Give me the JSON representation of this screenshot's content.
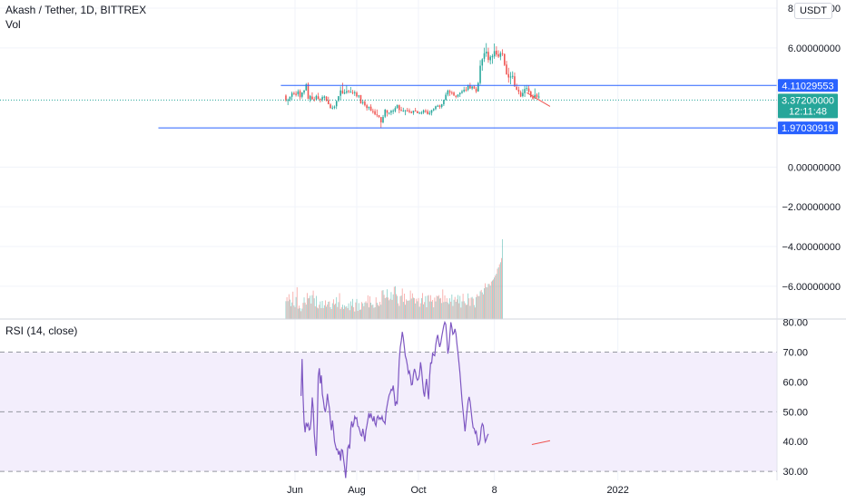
{
  "header": {
    "symbol_line": "Akash / Tether, 1D, BITTREX",
    "vol_label": "Vol"
  },
  "currency_badge": "USDT",
  "price_axis": {
    "ticks": [
      "8.00000000",
      "6.00000000",
      "0.00000000",
      "−2.00000000",
      "−4.00000000",
      "−6.00000000"
    ],
    "tick_values": [
      8,
      6,
      0,
      -2,
      -4,
      -6
    ],
    "range": [
      -7.65,
      8.0
    ]
  },
  "levels": {
    "resistance": {
      "label": "4.11029553",
      "value": 4.11029553,
      "color": "#2962ff"
    },
    "support": {
      "label": "1.97030919",
      "value": 1.97030919,
      "color": "#2962ff"
    },
    "last_price": {
      "label": "3.37200000",
      "countdown": "12:11:48",
      "value": 3.372,
      "color": "#26a69a"
    }
  },
  "rsi_panel": {
    "label": "RSI (14, close)",
    "ticks": [
      "80.00",
      "70.00",
      "60.00",
      "50.00",
      "40.00",
      "30.00"
    ],
    "tick_values": [
      80,
      70,
      60,
      50,
      40,
      30
    ],
    "range": [
      27,
      80.5
    ],
    "band": [
      30,
      70
    ],
    "line_color": "#7e57c2",
    "band_color": "#f3eefc"
  },
  "time_axis": {
    "labels": [
      "Jun",
      "Aug",
      "Oct",
      "8",
      "2022"
    ],
    "label_index": [
      0,
      61,
      122,
      197,
      319
    ]
  },
  "chart_data": [
    {
      "type": "candlestick",
      "name": "price",
      "up_color": "#26a69a",
      "down_color": "#ef5350",
      "x_start_index": -9,
      "ohlc": [
        [
          3.6,
          3.66,
          3.29,
          3.36
        ],
        [
          3.34,
          3.45,
          3.12,
          3.38
        ],
        [
          3.41,
          3.54,
          3.3,
          3.55
        ],
        [
          3.54,
          3.8,
          3.38,
          3.72
        ],
        [
          3.72,
          3.8,
          3.63,
          3.69
        ],
        [
          3.69,
          3.82,
          3.55,
          3.63
        ],
        [
          3.66,
          3.91,
          3.55,
          3.81
        ],
        [
          3.83,
          3.91,
          3.41,
          3.52
        ],
        [
          3.54,
          3.76,
          3.45,
          3.76
        ],
        [
          3.75,
          3.88,
          3.65,
          3.86
        ],
        [
          3.86,
          4.23,
          3.84,
          4.16
        ],
        [
          4.18,
          4.26,
          3.43,
          3.43
        ],
        [
          3.41,
          3.63,
          3.27,
          3.58
        ],
        [
          3.55,
          3.76,
          3.39,
          3.41
        ],
        [
          3.41,
          3.54,
          3.3,
          3.39
        ],
        [
          3.41,
          3.64,
          3.35,
          3.58
        ],
        [
          3.56,
          3.74,
          3.41,
          3.42
        ],
        [
          3.43,
          3.46,
          3.25,
          3.4
        ],
        [
          3.4,
          3.61,
          3.29,
          3.52
        ],
        [
          3.49,
          3.61,
          3.39,
          3.55
        ],
        [
          3.55,
          3.57,
          3.3,
          3.35
        ],
        [
          3.37,
          3.54,
          3.18,
          3.16
        ],
        [
          3.15,
          3.21,
          2.93,
          2.98
        ],
        [
          2.97,
          3.1,
          2.9,
          2.99
        ],
        [
          2.99,
          3.1,
          2.91,
          3.04
        ],
        [
          3.06,
          3.37,
          2.92,
          3.32
        ],
        [
          3.34,
          3.58,
          3.28,
          3.57
        ],
        [
          3.59,
          4.06,
          3.38,
          3.86
        ],
        [
          3.85,
          4.24,
          3.69,
          3.69
        ],
        [
          3.71,
          3.92,
          3.66,
          3.75
        ],
        [
          3.75,
          4.11,
          3.68,
          3.82
        ],
        [
          3.84,
          3.89,
          3.71,
          3.8
        ],
        [
          3.78,
          4.03,
          3.74,
          3.79
        ],
        [
          3.77,
          3.89,
          3.66,
          3.74
        ],
        [
          3.73,
          3.86,
          3.58,
          3.76
        ],
        [
          3.75,
          3.82,
          3.5,
          3.56
        ],
        [
          3.57,
          3.63,
          3.47,
          3.6
        ],
        [
          3.62,
          3.63,
          3.2,
          3.2
        ],
        [
          3.22,
          3.38,
          3.14,
          3.27
        ],
        [
          3.29,
          3.38,
          3.05,
          3.11
        ],
        [
          3.11,
          3.18,
          2.84,
          2.97
        ],
        [
          2.97,
          3.04,
          2.87,
          3.04
        ],
        [
          3.04,
          3.16,
          2.82,
          2.83
        ],
        [
          2.82,
          2.94,
          2.69,
          2.8
        ],
        [
          2.81,
          2.92,
          2.61,
          2.65
        ],
        [
          2.65,
          2.9,
          2.51,
          2.61
        ],
        [
          2.61,
          2.62,
          2.47,
          2.52
        ],
        [
          2.52,
          2.52,
          1.97,
          2.25
        ],
        [
          2.25,
          2.62,
          2.2,
          2.52
        ],
        [
          2.54,
          2.93,
          2.47,
          2.89
        ],
        [
          2.87,
          2.87,
          2.55,
          2.73
        ],
        [
          2.72,
          2.75,
          2.64,
          2.74
        ],
        [
          2.74,
          2.88,
          2.61,
          2.83
        ],
        [
          2.84,
          2.92,
          2.67,
          2.84
        ],
        [
          2.82,
          3.06,
          2.75,
          2.97
        ],
        [
          2.97,
          3.15,
          2.94,
          3.12
        ],
        [
          3.11,
          3.15,
          2.71,
          2.87
        ],
        [
          2.88,
          3.03,
          2.81,
          2.83
        ],
        [
          2.82,
          2.99,
          2.78,
          2.84
        ],
        [
          2.86,
          2.88,
          2.61,
          2.86
        ],
        [
          2.86,
          2.98,
          2.78,
          2.84
        ],
        [
          2.85,
          2.95,
          2.71,
          2.78
        ],
        [
          2.78,
          2.83,
          2.7,
          2.72
        ],
        [
          2.73,
          2.84,
          2.63,
          2.84
        ],
        [
          2.85,
          2.98,
          2.79,
          2.82
        ],
        [
          2.81,
          2.84,
          2.71,
          2.71
        ],
        [
          2.71,
          2.79,
          2.67,
          2.73
        ],
        [
          2.72,
          2.82,
          2.65,
          2.74
        ],
        [
          2.74,
          2.9,
          2.67,
          2.85
        ],
        [
          2.84,
          2.92,
          2.72,
          2.82
        ],
        [
          2.81,
          2.9,
          2.64,
          2.67
        ],
        [
          2.67,
          2.84,
          2.61,
          2.73
        ],
        [
          2.73,
          2.88,
          2.6,
          2.87
        ],
        [
          2.86,
          2.97,
          2.81,
          2.92
        ],
        [
          2.92,
          3.09,
          2.86,
          3.06
        ],
        [
          3.05,
          3.14,
          3.02,
          3.09
        ],
        [
          3.1,
          3.14,
          2.93,
          3.03
        ],
        [
          3.03,
          3.18,
          2.95,
          3.16
        ],
        [
          3.16,
          3.4,
          3.07,
          3.38
        ],
        [
          3.38,
          3.75,
          3.35,
          3.64
        ],
        [
          3.65,
          3.9,
          3.56,
          3.85
        ],
        [
          3.83,
          3.9,
          3.58,
          3.75
        ],
        [
          3.75,
          3.84,
          3.64,
          3.73
        ],
        [
          3.75,
          3.81,
          3.58,
          3.6
        ],
        [
          3.58,
          3.63,
          3.46,
          3.55
        ],
        [
          3.55,
          3.66,
          3.5,
          3.65
        ],
        [
          3.66,
          3.77,
          3.53,
          3.73
        ],
        [
          3.74,
          3.89,
          3.68,
          3.81
        ],
        [
          3.81,
          4.04,
          3.75,
          3.89
        ],
        [
          3.9,
          4.03,
          3.79,
          3.88
        ],
        [
          3.89,
          4.15,
          3.82,
          4.13
        ],
        [
          4.12,
          4.24,
          3.98,
          3.95
        ],
        [
          3.96,
          4.08,
          3.88,
          4.05
        ],
        [
          4.06,
          4.12,
          3.93,
          3.95
        ],
        [
          3.95,
          4.04,
          3.72,
          3.8
        ],
        [
          3.81,
          4.29,
          3.79,
          4.23
        ],
        [
          4.23,
          5.38,
          4.15,
          5.1
        ],
        [
          5.11,
          5.48,
          4.85,
          5.43
        ],
        [
          5.45,
          6.01,
          5.29,
          5.73
        ],
        [
          5.72,
          6.24,
          5.55,
          5.81
        ],
        [
          5.8,
          6.01,
          5.25,
          5.39
        ],
        [
          5.38,
          5.63,
          5.17,
          5.55
        ],
        [
          5.53,
          5.69,
          5.2,
          5.59
        ],
        [
          5.57,
          6.22,
          5.45,
          5.84
        ],
        [
          5.86,
          6.08,
          5.55,
          5.66
        ],
        [
          5.68,
          5.88,
          5.49,
          5.56
        ],
        [
          5.55,
          5.83,
          5.38,
          5.73
        ],
        [
          5.73,
          5.93,
          5.59,
          5.71
        ],
        [
          5.69,
          5.72,
          5.08,
          5.14
        ],
        [
          5.16,
          5.35,
          4.65,
          4.66
        ],
        [
          4.68,
          5.0,
          4.25,
          4.51
        ],
        [
          4.51,
          4.79,
          4.17,
          4.56
        ],
        [
          4.59,
          4.82,
          4.44,
          4.59
        ],
        [
          4.57,
          4.76,
          4.04,
          4.05
        ],
        [
          4.04,
          4.2,
          3.87,
          3.89
        ],
        [
          3.89,
          4.05,
          3.66,
          3.79
        ],
        [
          3.77,
          3.86,
          3.52,
          3.55
        ],
        [
          3.57,
          3.92,
          3.51,
          3.73
        ],
        [
          3.72,
          4.11,
          3.53,
          3.93
        ],
        [
          3.94,
          4.13,
          3.82,
          3.98
        ],
        [
          3.96,
          4.1,
          3.73,
          3.78
        ],
        [
          3.8,
          3.85,
          3.5,
          3.53
        ],
        [
          3.54,
          3.66,
          3.38,
          3.45
        ],
        [
          3.45,
          3.96,
          3.44,
          3.63
        ],
        [
          3.65,
          3.72,
          3.48,
          3.52
        ],
        [
          3.51,
          3.76,
          3.44,
          3.55
        ]
      ]
    },
    {
      "type": "bar",
      "name": "Vol",
      "colors": [
        "#26a69a",
        "#ef5350"
      ],
      "x_start_index": -9,
      "values": [
        0.224,
        0.274,
        0.224,
        0.311,
        0.243,
        0.161,
        0.208,
        0.343,
        0.17,
        0.15,
        0.275,
        0.398,
        0.13,
        0.168,
        0.135,
        0.098,
        0.131,
        0.203,
        0.271,
        0.206,
        0.181,
        0.326,
        0.259,
        0.264,
        0.293,
        0.194,
        0.299,
        0.356,
        0.26,
        0.159,
        0.29,
        0.144,
        0.134,
        0.179,
        0.22,
        0.137,
        0.227,
        0.138,
        0.173,
        0.234,
        0.155,
        0.182,
        0.216,
        0.221,
        0.149,
        0.125,
        0.198,
        0.247,
        0.179,
        0.193,
        0.274,
        0.15,
        0.212,
        0.324,
        0.127,
        0.149,
        0.18,
        0.126,
        0.171,
        0.152,
        0.159,
        0.137,
        0.197,
        0.111,
        0.221,
        0.165,
        0.252,
        0.148,
        0.095,
        0.208,
        0.251,
        0.102,
        0.2,
        0.115,
        0.12,
        0.213,
        0.197,
        0.161,
        0.207,
        0.223,
        0.201,
        0.297,
        0.146,
        0.285,
        0.205,
        0.174,
        0.181,
        0.14,
        0.148,
        0.272,
        0.204,
        0.178,
        0.163,
        0.216,
        0.179,
        0.356,
        0.363,
        0.303,
        0.262,
        0.271,
        0.373,
        0.269,
        0.235,
        0.253,
        0.338,
        0.24,
        0.309,
        0.403,
        0.411,
        0.312,
        0.29,
        0.197,
        0.165,
        0.286,
        0.294,
        0.382,
        0.215,
        0.318,
        0.179,
        0.247,
        0.231,
        0.229,
        0.234,
        0.357,
        0.256,
        0.322,
        0.267,
        0.261,
        0.195,
        0.254,
        0.223,
        0.263,
        0.154,
        0.198,
        0.262,
        0.326,
        0.185,
        0.213,
        0.287,
        0.148,
        0.293,
        0.301,
        0.22,
        0.299,
        0.219,
        0.239,
        0.147,
        0.269,
        0.221,
        0.293,
        0.284,
        0.299,
        0.256,
        0.264,
        0.201,
        0.371,
        0.212,
        0.296,
        0.216,
        0.261,
        0.208,
        0.188,
        0.26,
        0.217,
        0.307,
        0.164,
        0.241,
        0.277,
        0.216,
        0.247,
        0.301,
        0.198,
        0.29,
        0.144,
        0.221,
        0.317,
        0.223,
        0.199,
        0.177,
        0.18,
        0.321,
        0.26,
        0.165,
        0.268,
        0.277,
        0.255,
        0.176,
        0.145,
        0.275,
        0.311,
        0.287,
        0.288,
        0.347,
        0.365,
        0.334,
        0.309,
        0.386,
        0.448,
        0.399,
        0.397,
        0.441,
        0.44,
        0.418,
        0.47,
        0.483,
        0.496,
        0.52,
        0.546,
        0.567,
        0.63,
        0.648,
        0.686,
        0.712,
        0.764,
        1.0
      ]
    },
    {
      "type": "line",
      "name": "RSI (14, close)",
      "x_start_index": 6,
      "values": [
        55.3,
        67.7,
        54.8,
        46.5,
        43.1,
        46.3,
        45.2,
        46.0,
        43.9,
        44.2,
        47.4,
        54.8,
        50.9,
        42.7,
        38.5,
        35.2,
        46.0,
        61.9,
        64.6,
        59.5,
        62.2,
        55.9,
        53.9,
        51.2,
        49.9,
        52.3,
        56.0,
        53.2,
        51.2,
        46.9,
        43.8,
        47.1,
        43.9,
        40.0,
        38.6,
        37.3,
        37.5,
        35.6,
        36.9,
        33.6,
        37.3,
        37.0,
        34.1,
        31.5,
        27.8,
        32.6,
        37.8,
        38.7,
        37.6,
        44.2,
        46.8,
        44.8,
        46.1,
        48.4,
        47.7,
        48.0,
        45.2,
        44.9,
        43.6,
        42.2,
        41.9,
        44.3,
        42.4,
        40.0,
        43.7,
        45.4,
        47.4,
        49.6,
        47.9,
        49.5,
        48.0,
        46.8,
        48.5,
        46.1,
        45.3,
        48.0,
        48.6,
        47.5,
        48.0,
        47.5,
        48.5,
        46.9,
        46.6,
        46.0,
        50.2,
        52.1,
        54.0,
        55.6,
        56.3,
        57.5,
        57.2,
        58.8,
        55.8,
        52.0,
        53.3,
        52.8,
        59.2,
        67.1,
        71.7,
        73.8,
        76.8,
        74.8,
        71.8,
        68.7,
        67.6,
        65.5,
        62.9,
        63.6,
        61.8,
        59.0,
        59.2,
        62.7,
        64.4,
        63.3,
        61.4,
        60.6,
        61.0,
        62.5,
        66.6,
        64.1,
        60.2,
        56.6,
        55.1,
        58.6,
        61.0,
        57.1,
        54.2,
        61.9,
        66.4,
        66.3,
        69.6,
        69.0,
        68.8,
        72.3,
        74.5,
        75.8,
        73.5,
        71.7,
        73.1,
        75.3,
        77.1,
        78.9,
        80.0,
        79.3,
        74.7,
        69.5,
        71.4,
        75.9,
        80.0,
        78.3,
        76.0,
        76.5,
        77.8,
        76.2,
        72.7,
        69.8,
        66.5,
        63.0,
        58.2,
        53.8,
        50.3,
        47.0,
        43.4,
        46.8,
        50.2,
        53.5,
        55.0,
        53.4,
        50.3,
        47.2,
        44.7,
        44.4,
        42.8,
        43.4,
        41.0,
        38.9,
        39.2,
        40.7,
        44.7,
        46.0,
        45.4,
        42.3,
        39.9,
        40.7,
        41.9,
        42.6
      ]
    }
  ],
  "annotations": {
    "trendline": {
      "type": "line",
      "color": "#ef5350",
      "price_from": 3.74,
      "price_to": 3.05
    },
    "rsi_trendline": {
      "type": "line",
      "color": "#ef5350",
      "rsi_from": 39.0,
      "rsi_to": 40.3
    }
  }
}
